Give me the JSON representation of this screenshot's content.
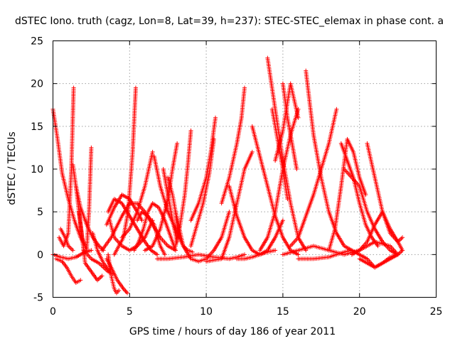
{
  "chart_data": {
    "type": "scatter",
    "title": "dSTEC Iono. truth (cagz, Lon=8, Lat=39, h=237): STEC-STEC_elemax in phase cont. a",
    "xlabel": "GPS time / hours of day 186 of year 2011",
    "ylabel": "dSTEC  / TECUs",
    "xlim": [
      0,
      25
    ],
    "ylim": [
      -5,
      25
    ],
    "xticks": [
      0,
      5,
      10,
      15,
      20,
      25
    ],
    "yticks": [
      -5,
      0,
      5,
      10,
      15,
      20,
      25
    ],
    "grid": true,
    "marker": "+",
    "color": "#ff0000",
    "series": [
      {
        "x": [
          0.0,
          0.3,
          0.6,
          1.0,
          1.4,
          1.8,
          2.1
        ],
        "y": [
          17.0,
          13.5,
          9.5,
          6.5,
          4.0,
          2.0,
          1.0
        ]
      },
      {
        "x": [
          0.0,
          0.5,
          1.0,
          1.5,
          2.0,
          2.5
        ],
        "y": [
          0.0,
          -0.3,
          -0.5,
          -0.3,
          0.2,
          0.5
        ]
      },
      {
        "x": [
          0.2,
          0.6,
          0.9,
          1.2,
          1.5,
          1.8
        ],
        "y": [
          -0.5,
          -0.8,
          -1.5,
          -2.5,
          -3.3,
          -3.0
        ]
      },
      {
        "x": [
          0.4,
          0.7,
          1.0,
          1.2,
          1.35
        ],
        "y": [
          2.0,
          1.0,
          2.5,
          10.0,
          19.5
        ]
      },
      {
        "x": [
          0.5,
          0.8,
          1.0,
          1.3
        ],
        "y": [
          3.0,
          2.0,
          1.0,
          0.5
        ]
      },
      {
        "x": [
          1.3,
          1.5,
          1.8,
          2.2,
          2.6,
          3.0,
          3.3
        ],
        "y": [
          10.5,
          8.0,
          5.5,
          3.5,
          2.0,
          1.0,
          0.5
        ]
      },
      {
        "x": [
          1.5,
          1.9,
          2.2,
          2.35,
          2.5
        ],
        "y": [
          8.0,
          2.0,
          0.5,
          5.0,
          12.5
        ]
      },
      {
        "x": [
          1.7,
          2.1,
          2.5,
          2.9,
          3.2
        ],
        "y": [
          5.0,
          -1.0,
          -2.0,
          -3.0,
          -2.5
        ]
      },
      {
        "x": [
          2.0,
          2.5,
          3.0,
          3.3,
          3.6,
          3.9
        ],
        "y": [
          0.5,
          -0.5,
          -1.0,
          -1.5,
          -2.0,
          -2.3
        ]
      },
      {
        "x": [
          2.6,
          2.9,
          3.3,
          3.7
        ],
        "y": [
          2.5,
          0.5,
          -1.0,
          -2.0
        ]
      },
      {
        "x": [
          3.5,
          3.8,
          4.2,
          4.6,
          4.85
        ],
        "y": [
          -0.5,
          -1.5,
          -3.0,
          -4.0,
          -4.5
        ]
      },
      {
        "x": [
          3.6,
          3.8,
          4.0,
          4.15,
          4.3
        ],
        "y": [
          0.0,
          -2.5,
          -4.0,
          -4.5,
          -4.2
        ]
      },
      {
        "x": [
          3.6,
          4.0,
          4.5,
          5.0,
          5.5,
          6.0,
          6.4,
          6.8
        ],
        "y": [
          5.0,
          6.5,
          6.0,
          4.5,
          3.0,
          1.5,
          0.5,
          0.0
        ]
      },
      {
        "x": [
          3.2,
          3.8,
          4.5,
          5.0,
          5.5,
          6.0,
          6.5,
          7.0,
          7.5,
          8.0
        ],
        "y": [
          0.5,
          2.0,
          4.5,
          6.0,
          6.0,
          5.0,
          3.5,
          2.0,
          1.0,
          0.5
        ]
      },
      {
        "x": [
          3.7,
          4.0,
          4.5,
          5.0,
          5.5,
          6.0,
          6.5
        ],
        "y": [
          4.0,
          2.0,
          1.0,
          0.5,
          1.0,
          2.0,
          4.0
        ]
      },
      {
        "x": [
          3.5,
          4.0,
          4.5,
          5.0,
          5.5,
          5.8
        ],
        "y": [
          3.5,
          5.5,
          7.0,
          6.5,
          5.0,
          4.0
        ]
      },
      {
        "x": [
          4.0,
          4.3,
          4.6,
          4.9,
          5.2,
          5.4
        ],
        "y": [
          0.0,
          1.0,
          2.0,
          5.0,
          12.0,
          19.5
        ]
      },
      {
        "x": [
          4.5,
          5.0,
          5.5,
          6.0,
          6.5
        ],
        "y": [
          2.0,
          3.0,
          5.0,
          8.0,
          12.0
        ]
      },
      {
        "x": [
          5.5,
          5.8,
          6.2,
          6.6,
          7.0,
          7.3
        ],
        "y": [
          4.0,
          5.0,
          4.5,
          3.5,
          1.0,
          0.0
        ]
      },
      {
        "x": [
          5.3,
          5.6,
          5.9,
          6.2,
          6.5,
          6.9,
          7.3,
          7.7,
          8.0
        ],
        "y": [
          0.5,
          1.5,
          3.0,
          5.0,
          6.0,
          5.5,
          4.0,
          2.0,
          0.5
        ]
      },
      {
        "x": [
          6.0,
          6.5,
          7.0,
          7.5,
          7.8,
          8.1
        ],
        "y": [
          0.5,
          1.0,
          3.0,
          6.5,
          10.0,
          13.0
        ]
      },
      {
        "x": [
          6.6,
          7.0,
          7.5,
          8.0,
          8.5,
          8.8,
          9.1
        ],
        "y": [
          11.5,
          8.0,
          5.0,
          3.0,
          1.0,
          0.5,
          0.3
        ]
      },
      {
        "x": [
          7.2,
          7.5,
          7.8,
          8.1
        ],
        "y": [
          10.0,
          7.0,
          4.0,
          1.5
        ]
      },
      {
        "x": [
          7.5,
          7.8,
          8.0,
          8.2
        ],
        "y": [
          9.0,
          7.0,
          5.0,
          2.0
        ]
      },
      {
        "x": [
          8.0,
          8.5,
          9.0,
          9.5,
          10.0,
          10.5,
          11.0,
          11.5
        ],
        "y": [
          5.0,
          1.0,
          -0.5,
          -0.8,
          -0.5,
          0.5,
          2.0,
          5.0
        ]
      },
      {
        "x": [
          8.0,
          8.3,
          8.6,
          8.8,
          9.0
        ],
        "y": [
          1.0,
          3.5,
          7.0,
          10.5,
          14.5
        ]
      },
      {
        "x": [
          9.0,
          9.4,
          9.8,
          10.2,
          10.5
        ],
        "y": [
          1.0,
          3.5,
          6.0,
          9.5,
          13.5
        ]
      },
      {
        "x": [
          9.0,
          9.5,
          10.0,
          10.3,
          10.6
        ],
        "y": [
          4.0,
          6.0,
          9.0,
          12.0,
          16.0
        ]
      },
      {
        "x": [
          6.8,
          7.5,
          8.5,
          9.5,
          10.5,
          11.5,
          12.0,
          12.5
        ],
        "y": [
          -0.5,
          -0.5,
          -0.3,
          0.0,
          -0.3,
          -0.5,
          -0.3,
          0.0
        ]
      },
      {
        "x": [
          11.0,
          11.5,
          12.0,
          12.3,
          12.5
        ],
        "y": [
          6.0,
          9.0,
          13.0,
          16.0,
          19.5
        ]
      },
      {
        "x": [
          10.0,
          11.0,
          11.5,
          12.0,
          12.5,
          13.0
        ],
        "y": [
          -0.8,
          -0.5,
          2.0,
          6.0,
          10.0,
          12.0
        ]
      },
      {
        "x": [
          11.5,
          12.0,
          12.5,
          13.0,
          13.5,
          14.0,
          14.5,
          15.0
        ],
        "y": [
          8.0,
          4.5,
          2.0,
          0.5,
          0.0,
          0.5,
          2.0,
          4.0
        ]
      },
      {
        "x": [
          12.0,
          12.5,
          13.0,
          13.5,
          14.0,
          14.5
        ],
        "y": [
          -0.5,
          -0.5,
          -0.3,
          0.0,
          0.3,
          0.5
        ]
      },
      {
        "x": [
          13.0,
          13.5,
          14.0,
          14.5,
          15.0,
          15.5,
          16.0
        ],
        "y": [
          15.0,
          11.5,
          8.0,
          4.5,
          2.0,
          0.5,
          0.0
        ]
      },
      {
        "x": [
          13.5,
          14.0,
          14.5,
          15.0,
          15.5,
          16.0
        ],
        "y": [
          0.5,
          2.0,
          5.0,
          10.0,
          14.0,
          17.0
        ]
      },
      {
        "x": [
          14.0,
          14.5,
          15.0,
          15.5,
          16.0,
          16.5
        ],
        "y": [
          23.0,
          17.0,
          11.0,
          6.0,
          2.0,
          0.5
        ]
      },
      {
        "x": [
          14.3,
          14.7,
          15.0,
          15.3
        ],
        "y": [
          17.0,
          13.0,
          10.0,
          6.5
        ]
      },
      {
        "x": [
          14.5,
          15.0,
          15.5,
          16.0
        ],
        "y": [
          11.0,
          14.5,
          20.0,
          16.0
        ]
      },
      {
        "x": [
          15.0,
          15.3,
          15.6,
          15.9
        ],
        "y": [
          20.0,
          16.0,
          13.0,
          10.0
        ]
      },
      {
        "x": [
          15.5,
          16.0,
          16.5,
          17.0,
          17.5,
          18.0,
          18.5
        ],
        "y": [
          1.0,
          2.0,
          4.5,
          7.0,
          10.0,
          13.0,
          17.0
        ]
      },
      {
        "x": [
          16.5,
          17.0,
          17.5,
          18.0,
          18.5,
          19.0,
          19.5
        ],
        "y": [
          21.5,
          14.0,
          9.0,
          5.0,
          2.5,
          1.0,
          0.5
        ]
      },
      {
        "x": [
          15.0,
          16.0,
          17.0,
          18.0,
          19.0,
          20.0,
          21.0,
          22.0,
          22.5
        ],
        "y": [
          0.0,
          0.5,
          1.0,
          0.5,
          0.0,
          0.5,
          1.5,
          1.0,
          0.0
        ]
      },
      {
        "x": [
          16.0,
          17.0,
          18.0,
          19.0,
          19.5,
          20.0,
          20.5,
          21.0,
          21.5,
          22.0,
          22.5
        ],
        "y": [
          -0.5,
          -0.5,
          -0.3,
          0.3,
          0.5,
          0.0,
          -0.5,
          -1.5,
          -1.0,
          -0.3,
          0.0
        ]
      },
      {
        "x": [
          18.0,
          18.4,
          18.8,
          19.2,
          19.6,
          20.0,
          20.4
        ],
        "y": [
          0.5,
          3.0,
          8.0,
          13.5,
          12.0,
          9.0,
          7.0
        ]
      },
      {
        "x": [
          18.8,
          19.2,
          19.6,
          20.0,
          20.4,
          20.8,
          21.2
        ],
        "y": [
          13.0,
          11.0,
          9.0,
          6.0,
          3.5,
          2.0,
          1.0
        ]
      },
      {
        "x": [
          19.0,
          19.5,
          20.0,
          20.5,
          21.0,
          21.5,
          22.0,
          22.5
        ],
        "y": [
          10.0,
          9.0,
          8.0,
          5.0,
          3.0,
          1.5,
          0.5,
          0.0
        ]
      },
      {
        "x": [
          19.5,
          20.0,
          20.5,
          21.0,
          21.5,
          22.0,
          22.5,
          22.8
        ],
        "y": [
          0.0,
          0.5,
          1.5,
          3.5,
          5.0,
          3.0,
          1.5,
          2.0
        ]
      },
      {
        "x": [
          20.0,
          20.5,
          21.0,
          21.5,
          22.0,
          22.5,
          22.8
        ],
        "y": [
          -0.5,
          -1.0,
          -1.5,
          -1.0,
          -0.5,
          0.0,
          0.5
        ]
      },
      {
        "x": [
          20.5,
          21.0,
          21.5,
          22.0,
          22.5,
          22.8
        ],
        "y": [
          13.0,
          9.0,
          5.0,
          2.5,
          1.5,
          0.5
        ]
      }
    ]
  }
}
